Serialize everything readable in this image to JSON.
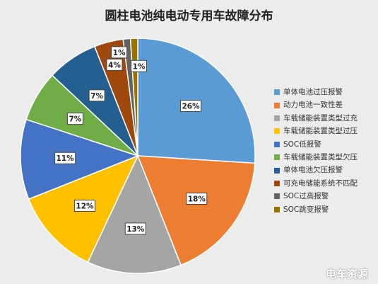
{
  "chart_data": {
    "type": "pie",
    "title": "圆柱电池纯电动专用车故障分布",
    "categories": [
      "单体电池过压报警",
      "动力电池一致性差",
      "车载储能装置类型过充",
      "车载储能装置类型过压",
      "SOC低报警",
      "车载储能装置类型欠压",
      "单体电池欠压报警",
      "可充电储能系统不匹配",
      "SOC过高报警",
      "SOC跳变报警"
    ],
    "values": [
      26,
      18,
      13,
      12,
      11,
      7,
      7,
      4,
      1,
      1
    ],
    "value_labels": [
      "26%",
      "18%",
      "13%",
      "12%",
      "11%",
      "7%",
      "7%",
      "4%",
      "1%",
      "1%"
    ],
    "colors": [
      "#5b9bd5",
      "#ed7d31",
      "#a5a5a5",
      "#ffc000",
      "#4472c4",
      "#70ad47",
      "#255e91",
      "#9e480e",
      "#636363",
      "#997300"
    ],
    "legend_position": "right"
  },
  "watermark": "电车资源"
}
